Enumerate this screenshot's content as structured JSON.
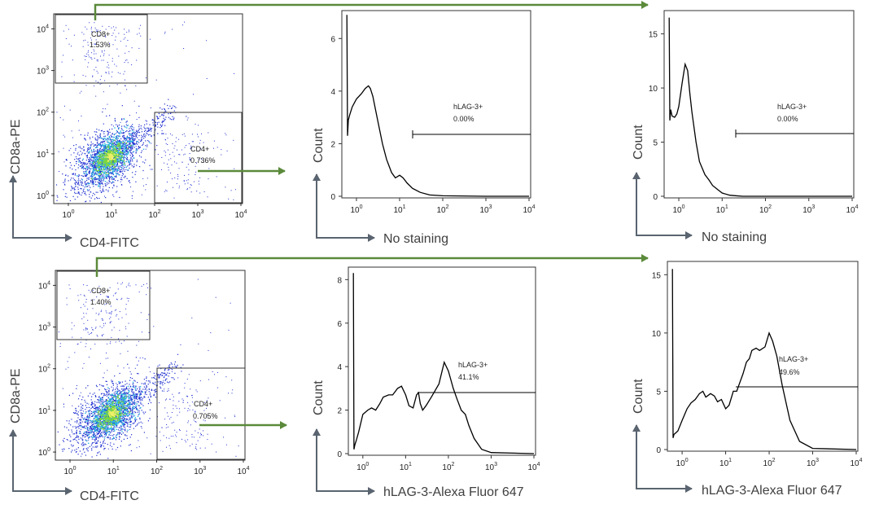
{
  "colors": {
    "green_arrow": "#5b8a3a",
    "axis_arrow": "#5a6470",
    "axis_title": "#404040",
    "histogram_line": "#000000",
    "dot_blue": "#1f2fd0",
    "dot_cyan": "#27b7e0",
    "dot_green": "#7fd83a",
    "dot_yellow": "#f2f06a"
  },
  "chart_data": [
    {
      "id": "dot_top",
      "type": "scatter",
      "description_scale": "log",
      "xlabel": "CD4-FITC",
      "ylabel": "CD8a-PE",
      "x_ticks": [
        "10^0",
        "10^1",
        "10^2",
        "10^3",
        "10^4"
      ],
      "y_ticks": [
        "10^0",
        "10^1",
        "10^2",
        "10^3",
        "10^4"
      ],
      "xlim": [
        0.5,
        10000
      ],
      "ylim": [
        0.7,
        20000
      ],
      "gates": [
        {
          "name": "CD8+",
          "value": "1.53%",
          "x_range": [
            0.7,
            60
          ],
          "y_range": [
            330,
            17000
          ]
        },
        {
          "name": "CD4+",
          "value": "0.736%",
          "x_range": [
            60,
            9000
          ],
          "y_range": [
            0.7,
            60
          ]
        }
      ]
    },
    {
      "id": "dot_bottom",
      "type": "scatter",
      "description_scale": "log",
      "xlabel": "CD4-FITC",
      "ylabel": "CD8a-PE",
      "x_ticks": [
        "10^0",
        "10^1",
        "10^2",
        "10^3",
        "10^4"
      ],
      "y_ticks": [
        "10^0",
        "10^1",
        "10^2",
        "10^3",
        "10^4"
      ],
      "xlim": [
        0.5,
        10000
      ],
      "ylim": [
        0.7,
        20000
      ],
      "gates": [
        {
          "name": "CD8+",
          "value": "1.40%",
          "x_range": [
            0.7,
            60
          ],
          "y_range": [
            330,
            17000
          ]
        },
        {
          "name": "CD4+",
          "value": "0.705%",
          "x_range": [
            60,
            9000
          ],
          "y_range": [
            0.7,
            60
          ]
        }
      ]
    },
    {
      "id": "hist_cd4_nostain",
      "type": "line",
      "xscale": "log",
      "xlabel": "No staining",
      "ylabel": "Count",
      "xlim": [
        0.5,
        10000
      ],
      "ylim": [
        0,
        7
      ],
      "y_ticks": [
        0,
        2,
        4,
        6
      ],
      "x_ticks": [
        "10^0",
        "10^1",
        "10^2",
        "10^3",
        "10^4"
      ],
      "gate": {
        "name": "hLAG-3+",
        "value": "0.00%",
        "x_range": [
          25,
          10000
        ],
        "y": 2.4
      },
      "x": [
        0.6,
        0.62,
        0.65,
        0.7,
        0.8,
        1.0,
        1.3,
        1.6,
        1.9,
        2.1,
        2.4,
        3,
        4,
        5,
        6.5,
        8,
        10,
        12,
        15,
        20,
        30,
        50,
        100,
        1000,
        10000
      ],
      "y": [
        6.9,
        2.3,
        2.9,
        3.1,
        3.4,
        3.7,
        3.9,
        4.1,
        4.2,
        4.1,
        3.8,
        3.0,
        2.0,
        1.4,
        0.9,
        0.7,
        0.8,
        0.7,
        0.5,
        0.3,
        0.15,
        0.05,
        0.02,
        0.0,
        0.0
      ]
    },
    {
      "id": "hist_cd8_nostain",
      "type": "line",
      "xscale": "log",
      "xlabel": "No staining",
      "ylabel": "Count",
      "xlim": [
        0.5,
        10000
      ],
      "ylim": [
        0,
        17
      ],
      "y_ticks": [
        0,
        5,
        10,
        15
      ],
      "x_ticks": [
        "10^0",
        "10^1",
        "10^2",
        "10^3",
        "10^4"
      ],
      "gate": {
        "name": "hLAG-3+",
        "value": "0.00%",
        "x_range": [
          25,
          10000
        ],
        "y": 6.1
      },
      "x": [
        0.6,
        0.62,
        0.65,
        0.7,
        0.8,
        0.9,
        1.0,
        1.2,
        1.4,
        1.6,
        1.8,
        2.0,
        2.5,
        3,
        4,
        5,
        6,
        8,
        10,
        15,
        20,
        30,
        100,
        1000,
        10000
      ],
      "y": [
        16.5,
        7.0,
        8.0,
        7.4,
        7.3,
        7.6,
        8.3,
        10.5,
        12.2,
        11.6,
        9.5,
        7.8,
        5.0,
        3.2,
        2.0,
        1.5,
        1.0,
        0.6,
        0.3,
        0.1,
        0.05,
        0.0,
        0.0,
        0.0,
        0.0
      ]
    },
    {
      "id": "hist_cd4_lag3",
      "type": "line",
      "xscale": "log",
      "xlabel": "hLAG-3-Alexa Fluor 647",
      "ylabel": "Count",
      "xlim": [
        0.5,
        10000
      ],
      "ylim": [
        0,
        8.5
      ],
      "y_ticks": [
        0,
        2,
        4,
        6,
        8
      ],
      "x_ticks": [
        "10^0",
        "10^1",
        "10^2",
        "10^3",
        "10^4"
      ],
      "gate": {
        "name": "hLAG-3+",
        "value": "41.1%",
        "x_range": [
          25,
          10000
        ],
        "y": 2.7
      },
      "x": [
        0.6,
        0.62,
        0.65,
        0.7,
        0.8,
        1.0,
        1.3,
        1.6,
        2.0,
        2.5,
        3,
        4,
        5,
        6.5,
        8,
        10,
        12,
        15,
        18,
        20,
        22,
        25,
        30,
        40,
        60,
        80,
        100,
        130,
        160,
        200,
        250,
        300,
        400,
        600,
        1000,
        10000
      ],
      "y": [
        8.3,
        0.2,
        0.4,
        0.6,
        1.0,
        1.8,
        2.0,
        2.1,
        2.0,
        2.3,
        2.6,
        2.7,
        2.7,
        3.0,
        3.1,
        2.7,
        2.2,
        2.1,
        2.7,
        2.8,
        2.3,
        2.0,
        2.2,
        2.6,
        3.2,
        4.2,
        3.8,
        3.0,
        2.5,
        2.0,
        1.8,
        1.3,
        0.7,
        0.2,
        0.05,
        0.0
      ]
    },
    {
      "id": "hist_cd8_lag3",
      "type": "line",
      "xscale": "log",
      "xlabel": "hLAG-3-Alexa Fluor 647",
      "ylabel": "Count",
      "xlim": [
        0.5,
        10000
      ],
      "ylim": [
        0,
        16
      ],
      "y_ticks": [
        0,
        5,
        10,
        15
      ],
      "x_ticks": [
        "10^0",
        "10^1",
        "10^2",
        "10^3",
        "10^4"
      ],
      "gate": {
        "name": "hLAG-3+",
        "value": "49.6%",
        "x_range": [
          25,
          10000
        ],
        "y": 5.4
      },
      "x": [
        0.6,
        0.62,
        0.65,
        0.7,
        0.8,
        1.0,
        1.3,
        1.6,
        2.0,
        2.5,
        3.0,
        3.5,
        4.5,
        5.5,
        6.5,
        8,
        10,
        12,
        15,
        18,
        20,
        25,
        30,
        35,
        40,
        50,
        60,
        80,
        100,
        120,
        150,
        200,
        300,
        500,
        1000,
        10000
      ],
      "y": [
        15.5,
        1.0,
        1.3,
        1.4,
        1.6,
        2.5,
        3.5,
        4.0,
        4.3,
        4.8,
        5.0,
        4.5,
        4.8,
        4.6,
        4.1,
        4.3,
        3.5,
        3.8,
        5.0,
        5.0,
        5.5,
        6.5,
        7.5,
        7.8,
        8.5,
        8.7,
        8.5,
        8.8,
        10.0,
        9.3,
        8.0,
        5.5,
        2.5,
        0.7,
        0.1,
        0.0
      ]
    }
  ]
}
